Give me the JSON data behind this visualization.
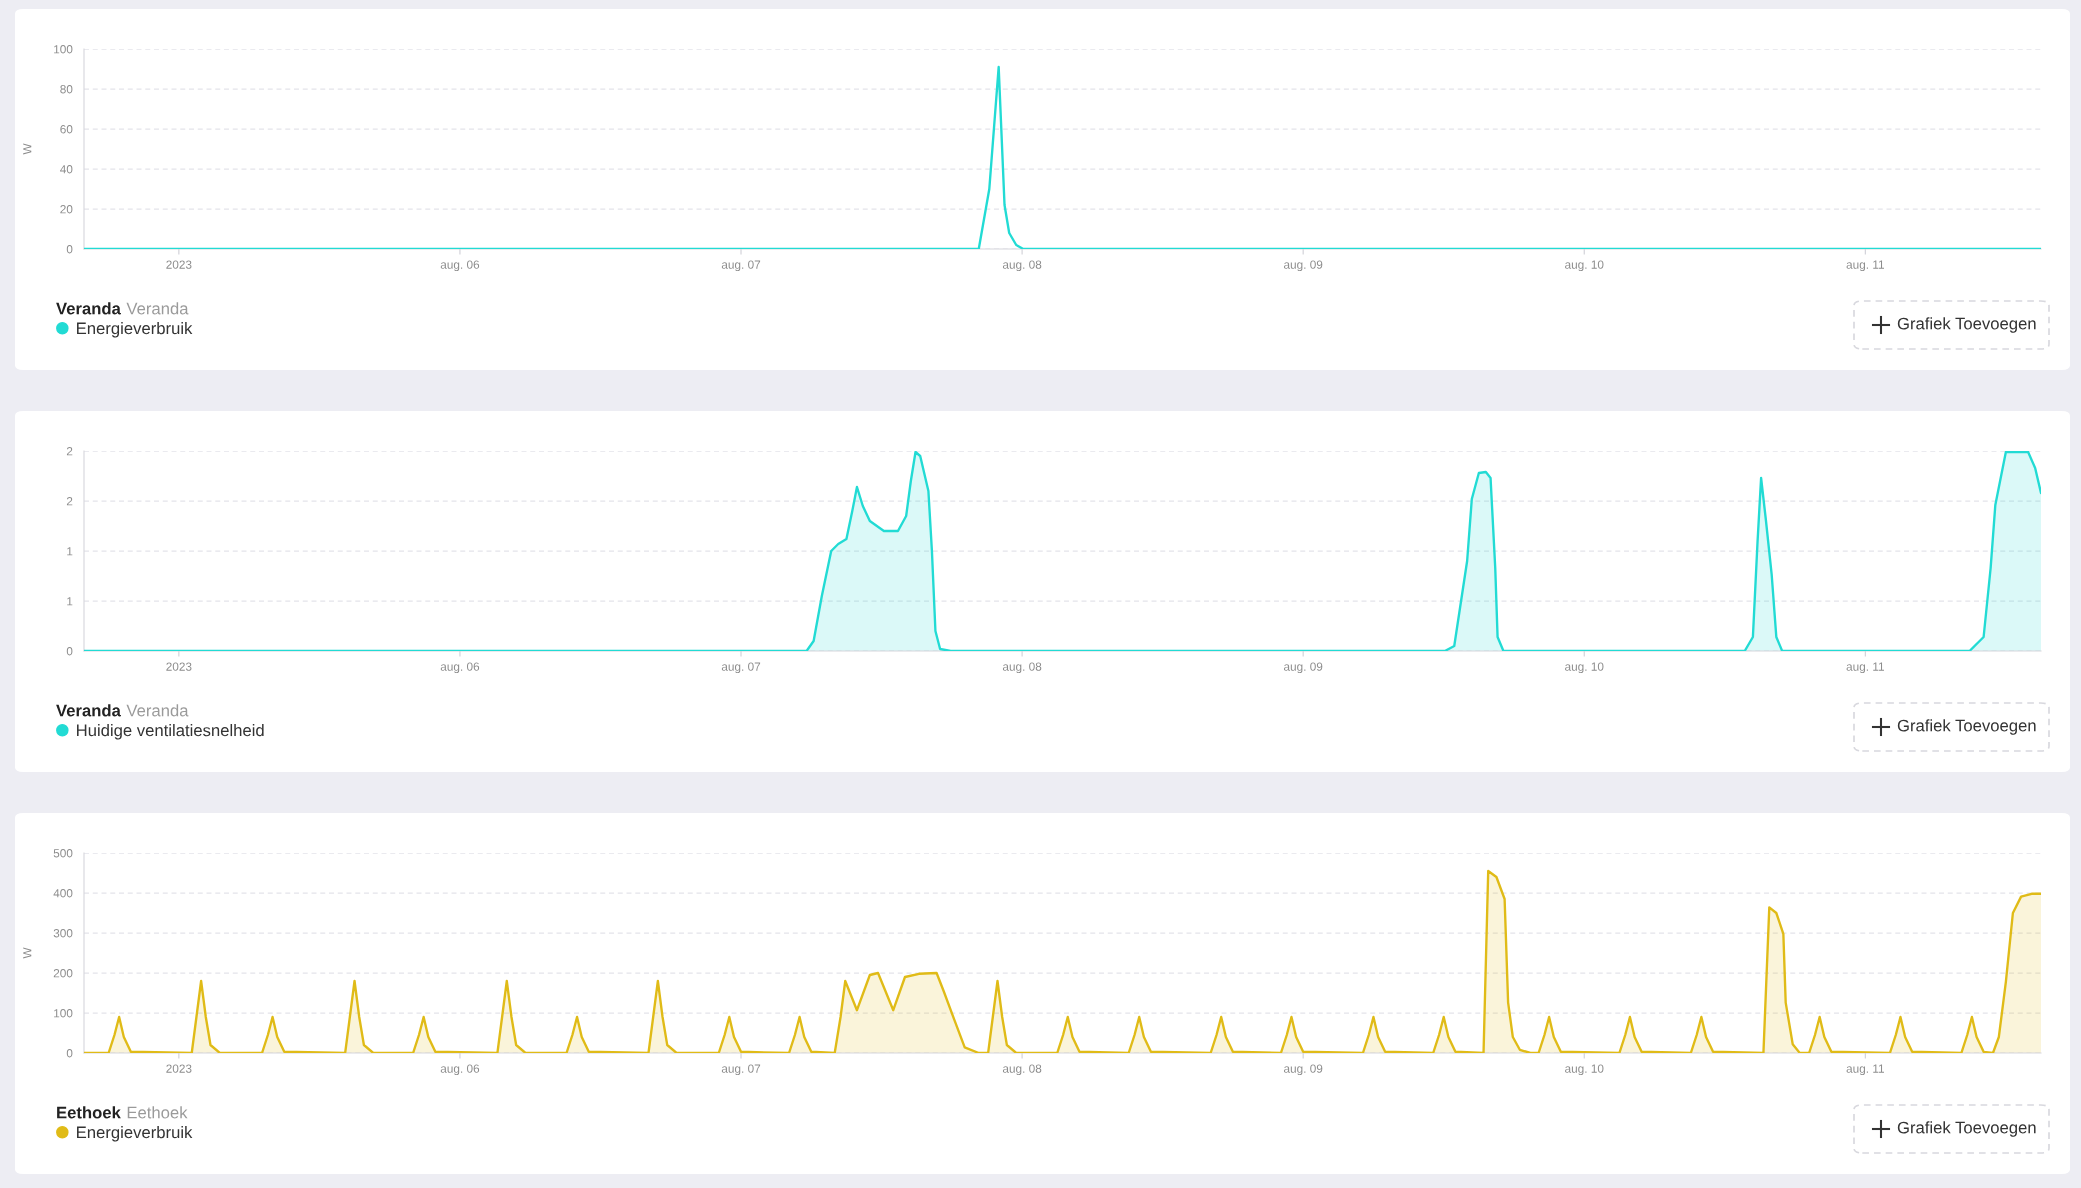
{
  "chart_data": [
    {
      "type": "line",
      "title": "Veranda",
      "subtitle": "Veranda",
      "ylabel": "W",
      "grid": "y",
      "legend": "bottom left",
      "annotations": [
        "Grafiek Toevoegen"
      ],
      "xlim": [
        "2023-08-04T15:54",
        "2023-08-11T15:00"
      ],
      "ylim": [
        0,
        100
      ],
      "yticks": [
        0,
        20,
        40,
        60,
        80,
        100
      ],
      "xticks": [
        {
          "value": "2023-08-05",
          "label": "2023"
        },
        {
          "value": "2023-08-06",
          "label": "aug. 06"
        },
        {
          "value": "2023-08-07",
          "label": "aug. 07"
        },
        {
          "value": "2023-08-08",
          "label": "aug. 08"
        },
        {
          "value": "2023-08-09",
          "label": "aug. 09"
        },
        {
          "value": "2023-08-10",
          "label": "aug. 10"
        },
        {
          "value": "2023-08-11",
          "label": "aug. 11"
        }
      ],
      "x": [
        "2023-08-04T15:54",
        "2023-08-07T20:18",
        "2023-08-07T21:12",
        "2023-08-07T22:00",
        "2023-08-07T22:30",
        "2023-08-07T22:54",
        "2023-08-07T23:30",
        "2023-08-08T00:06",
        "2023-08-11T15:00"
      ],
      "series": [
        {
          "name": "Energieverbruik",
          "color": "#22dbd4",
          "values": [
            0,
            0,
            30,
            91,
            22,
            8,
            2,
            0,
            0
          ]
        }
      ]
    },
    {
      "type": "area",
      "title": "Veranda",
      "subtitle": "Veranda",
      "grid": "y",
      "legend": "bottom left",
      "annotations": [
        "Grafiek Toevoegen"
      ],
      "xlim": [
        "2023-08-04T15:54",
        "2023-08-11T15:00"
      ],
      "ylim": [
        0,
        2
      ],
      "yticks": [
        0,
        {
          "value": 0.5,
          "label": "1"
        },
        1,
        {
          "value": 1.5,
          "label": "2"
        },
        2
      ],
      "xticks": [
        {
          "value": "2023-08-05",
          "label": "2023"
        },
        {
          "value": "2023-08-06",
          "label": "aug. 06"
        },
        {
          "value": "2023-08-07",
          "label": "aug. 07"
        },
        {
          "value": "2023-08-08",
          "label": "aug. 08"
        },
        {
          "value": "2023-08-09",
          "label": "aug. 09"
        },
        {
          "value": "2023-08-10",
          "label": "aug. 10"
        },
        {
          "value": "2023-08-11",
          "label": "aug. 11"
        }
      ],
      "x": [
        "2023-08-04T15:54",
        "2023-08-07T05:36",
        "2023-08-07T06:12",
        "2023-08-07T06:54",
        "2023-08-07T07:42",
        "2023-08-07T08:18",
        "2023-08-07T09:00",
        "2023-08-07T09:30",
        "2023-08-07T09:54",
        "2023-08-07T10:24",
        "2023-08-07T11:00",
        "2023-08-07T12:12",
        "2023-08-07T13:24",
        "2023-08-07T14:06",
        "2023-08-07T14:30",
        "2023-08-07T14:54",
        "2023-08-07T15:18",
        "2023-08-07T16:00",
        "2023-08-07T16:18",
        "2023-08-07T16:36",
        "2023-08-07T17:00",
        "2023-08-07T17:54",
        "2023-08-09T12:06",
        "2023-08-09T12:54",
        "2023-08-09T14:00",
        "2023-08-09T14:24",
        "2023-08-09T15:00",
        "2023-08-09T15:36",
        "2023-08-09T16:00",
        "2023-08-09T16:24",
        "2023-08-09T16:36",
        "2023-08-09T17:06",
        "2023-08-10T13:42",
        "2023-08-10T14:24",
        "2023-08-10T14:48",
        "2023-08-10T15:06",
        "2023-08-10T15:30",
        "2023-08-10T16:00",
        "2023-08-10T16:24",
        "2023-08-10T16:54",
        "2023-08-11T08:54",
        "2023-08-11T10:06",
        "2023-08-11T10:42",
        "2023-08-11T11:06",
        "2023-08-11T12:00",
        "2023-08-11T13:00",
        "2023-08-11T13:54",
        "2023-08-11T14:30",
        "2023-08-11T15:00"
      ],
      "series": [
        {
          "name": "Huidige ventilatiesnelheid",
          "color": "#22dbd4",
          "values": [
            0,
            0,
            0.1,
            0.55,
            1.0,
            1.07,
            1.12,
            1.4,
            1.64,
            1.45,
            1.3,
            1.2,
            1.2,
            1.35,
            1.7,
            1.99,
            1.95,
            1.6,
            1.0,
            0.2,
            0.02,
            0,
            0,
            0.05,
            0.9,
            1.52,
            1.78,
            1.79,
            1.73,
            0.83,
            0.14,
            0,
            0,
            0.14,
            1.1,
            1.73,
            1.32,
            0.77,
            0.14,
            0,
            0,
            0.14,
            0.83,
            1.46,
            1.99,
            1.99,
            1.99,
            1.83,
            1.58
          ]
        }
      ]
    },
    {
      "type": "area",
      "title": "Eethoek",
      "subtitle": "Eethoek",
      "ylabel": "W",
      "grid": "y",
      "legend": "bottom left",
      "annotations": [
        "Grafiek Toevoegen"
      ],
      "xlim": [
        "2023-08-04T15:54",
        "2023-08-11T15:00"
      ],
      "ylim": [
        0,
        500
      ],
      "yticks": [
        0,
        100,
        200,
        300,
        400,
        500
      ],
      "xticks": [
        {
          "value": "2023-08-05",
          "label": "2023"
        },
        {
          "value": "2023-08-06",
          "label": "aug. 06"
        },
        {
          "value": "2023-08-07",
          "label": "aug. 07"
        },
        {
          "value": "2023-08-08",
          "label": "aug. 08"
        },
        {
          "value": "2023-08-09",
          "label": "aug. 09"
        },
        {
          "value": "2023-08-10",
          "label": "aug. 10"
        },
        {
          "value": "2023-08-11",
          "label": "aug. 11"
        }
      ],
      "x": [
        "2023-08-04T15:54",
        "2023-08-04T18:00",
        "2023-08-04T18:30",
        "2023-08-04T18:54",
        "2023-08-04T19:18",
        "2023-08-04T19:54",
        "2023-08-05T01:06",
        "2023-08-05T01:30",
        "2023-08-05T01:54",
        "2023-08-05T02:18",
        "2023-08-05T02:42",
        "2023-08-05T03:30",
        "2023-08-05T07:06",
        "2023-08-05T07:36",
        "2023-08-05T08:00",
        "2023-08-05T08:24",
        "2023-08-05T09:00",
        "2023-08-05T14:12",
        "2023-08-05T14:36",
        "2023-08-05T15:00",
        "2023-08-05T15:24",
        "2023-08-05T15:48",
        "2023-08-05T16:36",
        "2023-08-05T20:00",
        "2023-08-05T20:30",
        "2023-08-05T20:54",
        "2023-08-05T21:18",
        "2023-08-05T21:54",
        "2023-08-06T03:12",
        "2023-08-06T03:36",
        "2023-08-06T04:00",
        "2023-08-06T04:24",
        "2023-08-06T04:48",
        "2023-08-06T05:36",
        "2023-08-06T09:06",
        "2023-08-06T09:36",
        "2023-08-06T10:00",
        "2023-08-06T10:24",
        "2023-08-06T11:00",
        "2023-08-06T16:06",
        "2023-08-06T16:30",
        "2023-08-06T16:54",
        "2023-08-06T17:18",
        "2023-08-06T17:42",
        "2023-08-06T18:30",
        "2023-08-06T22:06",
        "2023-08-06T22:36",
        "2023-08-06T23:00",
        "2023-08-06T23:24",
        "2023-08-07T00:00",
        "2023-08-07T04:06",
        "2023-08-07T04:36",
        "2023-08-07T05:00",
        "2023-08-07T05:24",
        "2023-08-07T06:00",
        "2023-08-07T08:00",
        "2023-08-07T08:30",
        "2023-08-07T08:54",
        "2023-08-07T09:54",
        "2023-08-07T11:00",
        "2023-08-07T11:42",
        "2023-08-07T13:00",
        "2023-08-07T14:00",
        "2023-08-07T15:12",
        "2023-08-07T16:42",
        "2023-08-07T17:18",
        "2023-08-07T18:12",
        "2023-08-07T19:06",
        "2023-08-07T20:18",
        "2023-08-07T21:06",
        "2023-08-07T21:30",
        "2023-08-07T21:54",
        "2023-08-07T22:18",
        "2023-08-07T22:42",
        "2023-08-07T23:30",
        "2023-08-08T03:00",
        "2023-08-08T03:30",
        "2023-08-08T03:54",
        "2023-08-08T04:18",
        "2023-08-08T04:54",
        "2023-08-08T09:06",
        "2023-08-08T09:36",
        "2023-08-08T10:00",
        "2023-08-08T10:24",
        "2023-08-08T11:00",
        "2023-08-08T16:06",
        "2023-08-08T16:36",
        "2023-08-08T17:00",
        "2023-08-08T17:24",
        "2023-08-08T18:00",
        "2023-08-08T22:06",
        "2023-08-08T22:36",
        "2023-08-08T23:00",
        "2023-08-08T23:24",
        "2023-08-09T00:00",
        "2023-08-09T05:06",
        "2023-08-09T05:36",
        "2023-08-09T06:00",
        "2023-08-09T06:24",
        "2023-08-09T07:00",
        "2023-08-09T11:06",
        "2023-08-09T11:36",
        "2023-08-09T12:00",
        "2023-08-09T12:24",
        "2023-08-09T13:00",
        "2023-08-09T15:24",
        "2023-08-09T15:48",
        "2023-08-09T16:30",
        "2023-08-09T17:12",
        "2023-08-09T17:30",
        "2023-08-09T17:54",
        "2023-08-09T18:30",
        "2023-08-09T19:24",
        "2023-08-09T20:06",
        "2023-08-09T20:36",
        "2023-08-09T21:00",
        "2023-08-09T21:24",
        "2023-08-09T22:00",
        "2023-08-10T03:00",
        "2023-08-10T03:30",
        "2023-08-10T03:54",
        "2023-08-10T04:18",
        "2023-08-10T04:54",
        "2023-08-10T09:06",
        "2023-08-10T09:36",
        "2023-08-10T10:00",
        "2023-08-10T10:24",
        "2023-08-10T11:00",
        "2023-08-10T15:18",
        "2023-08-10T15:48",
        "2023-08-10T16:24",
        "2023-08-10T17:00",
        "2023-08-10T17:12",
        "2023-08-10T17:48",
        "2023-08-10T18:24",
        "2023-08-10T19:12",
        "2023-08-10T19:42",
        "2023-08-10T20:06",
        "2023-08-10T20:30",
        "2023-08-10T21:06",
        "2023-08-11T02:06",
        "2023-08-11T02:36",
        "2023-08-11T03:00",
        "2023-08-11T03:24",
        "2023-08-11T04:00",
        "2023-08-11T08:12",
        "2023-08-11T08:42",
        "2023-08-11T09:06",
        "2023-08-11T09:30",
        "2023-08-11T10:06",
        "2023-08-11T10:54",
        "2023-08-11T11:24",
        "2023-08-11T12:00",
        "2023-08-11T12:36",
        "2023-08-11T13:18",
        "2023-08-11T14:12",
        "2023-08-11T15:00"
      ],
      "series": [
        {
          "name": "Energieverbruik",
          "color": "#e0bb17",
          "values": [
            0,
            0,
            45,
            90,
            40,
            3,
            0,
            90,
            180,
            90,
            20,
            0,
            0,
            45,
            90,
            40,
            3,
            0,
            90,
            180,
            90,
            20,
            0,
            0,
            45,
            90,
            40,
            3,
            0,
            90,
            180,
            90,
            20,
            0,
            0,
            45,
            90,
            40,
            3,
            0,
            90,
            180,
            90,
            20,
            0,
            0,
            45,
            90,
            40,
            3,
            0,
            45,
            90,
            40,
            3,
            0,
            90,
            180,
            107,
            195,
            200,
            107,
            190,
            198,
            200,
            155,
            84,
            14,
            0,
            0,
            90,
            180,
            90,
            20,
            0,
            0,
            45,
            90,
            40,
            3,
            0,
            45,
            90,
            40,
            3,
            0,
            45,
            90,
            40,
            3,
            0,
            45,
            90,
            40,
            3,
            0,
            45,
            90,
            40,
            3,
            0,
            45,
            90,
            40,
            3,
            0,
            455,
            440,
            385,
            126,
            40,
            8,
            0,
            0,
            45,
            90,
            40,
            3,
            0,
            45,
            90,
            40,
            3,
            0,
            45,
            90,
            40,
            3,
            0,
            364,
            350,
            298,
            126,
            22,
            0,
            0,
            45,
            90,
            40,
            3,
            0,
            45,
            90,
            40,
            3,
            0,
            45,
            90,
            40,
            3,
            0,
            40,
            178,
            350,
            391,
            398,
            398
          ]
        }
      ]
    }
  ]
}
